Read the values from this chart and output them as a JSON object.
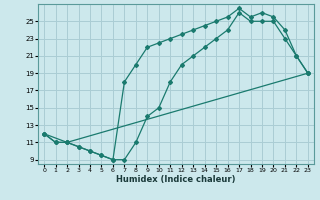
{
  "xlabel": "Humidex (Indice chaleur)",
  "bg_color": "#cce8ec",
  "grid_color": "#aacdd4",
  "line_color": "#1a7a6e",
  "xlim": [
    -0.5,
    23.5
  ],
  "ylim": [
    8.5,
    27
  ],
  "xticks": [
    0,
    1,
    2,
    3,
    4,
    5,
    6,
    7,
    8,
    9,
    10,
    11,
    12,
    13,
    14,
    15,
    16,
    17,
    18,
    19,
    20,
    21,
    22,
    23
  ],
  "yticks": [
    9,
    11,
    13,
    15,
    17,
    19,
    21,
    23,
    25
  ],
  "series1_x": [
    0,
    1,
    2,
    3,
    4,
    5,
    6,
    7,
    8,
    9,
    10,
    11,
    12,
    13,
    14,
    15,
    16,
    17,
    18,
    19,
    20,
    21,
    22,
    23
  ],
  "series1_y": [
    12,
    11,
    11,
    10.5,
    10,
    9.5,
    9,
    9,
    11,
    14,
    15,
    18,
    20,
    21,
    22,
    23,
    24,
    26,
    25,
    25,
    25,
    23,
    21,
    19
  ],
  "series2_x": [
    0,
    1,
    2,
    3,
    4,
    5,
    6,
    7,
    8,
    9,
    10,
    11,
    12,
    13,
    14,
    15,
    16,
    17,
    18,
    19,
    20,
    21,
    22,
    23
  ],
  "series2_y": [
    12,
    11,
    11,
    10.5,
    10,
    9.5,
    9,
    18,
    20,
    22,
    22.5,
    23,
    23.5,
    24,
    24.5,
    25,
    25.5,
    26.5,
    25.5,
    26,
    25.5,
    24,
    21,
    19
  ],
  "series3_x": [
    0,
    2,
    23
  ],
  "series3_y": [
    12,
    11,
    19
  ]
}
